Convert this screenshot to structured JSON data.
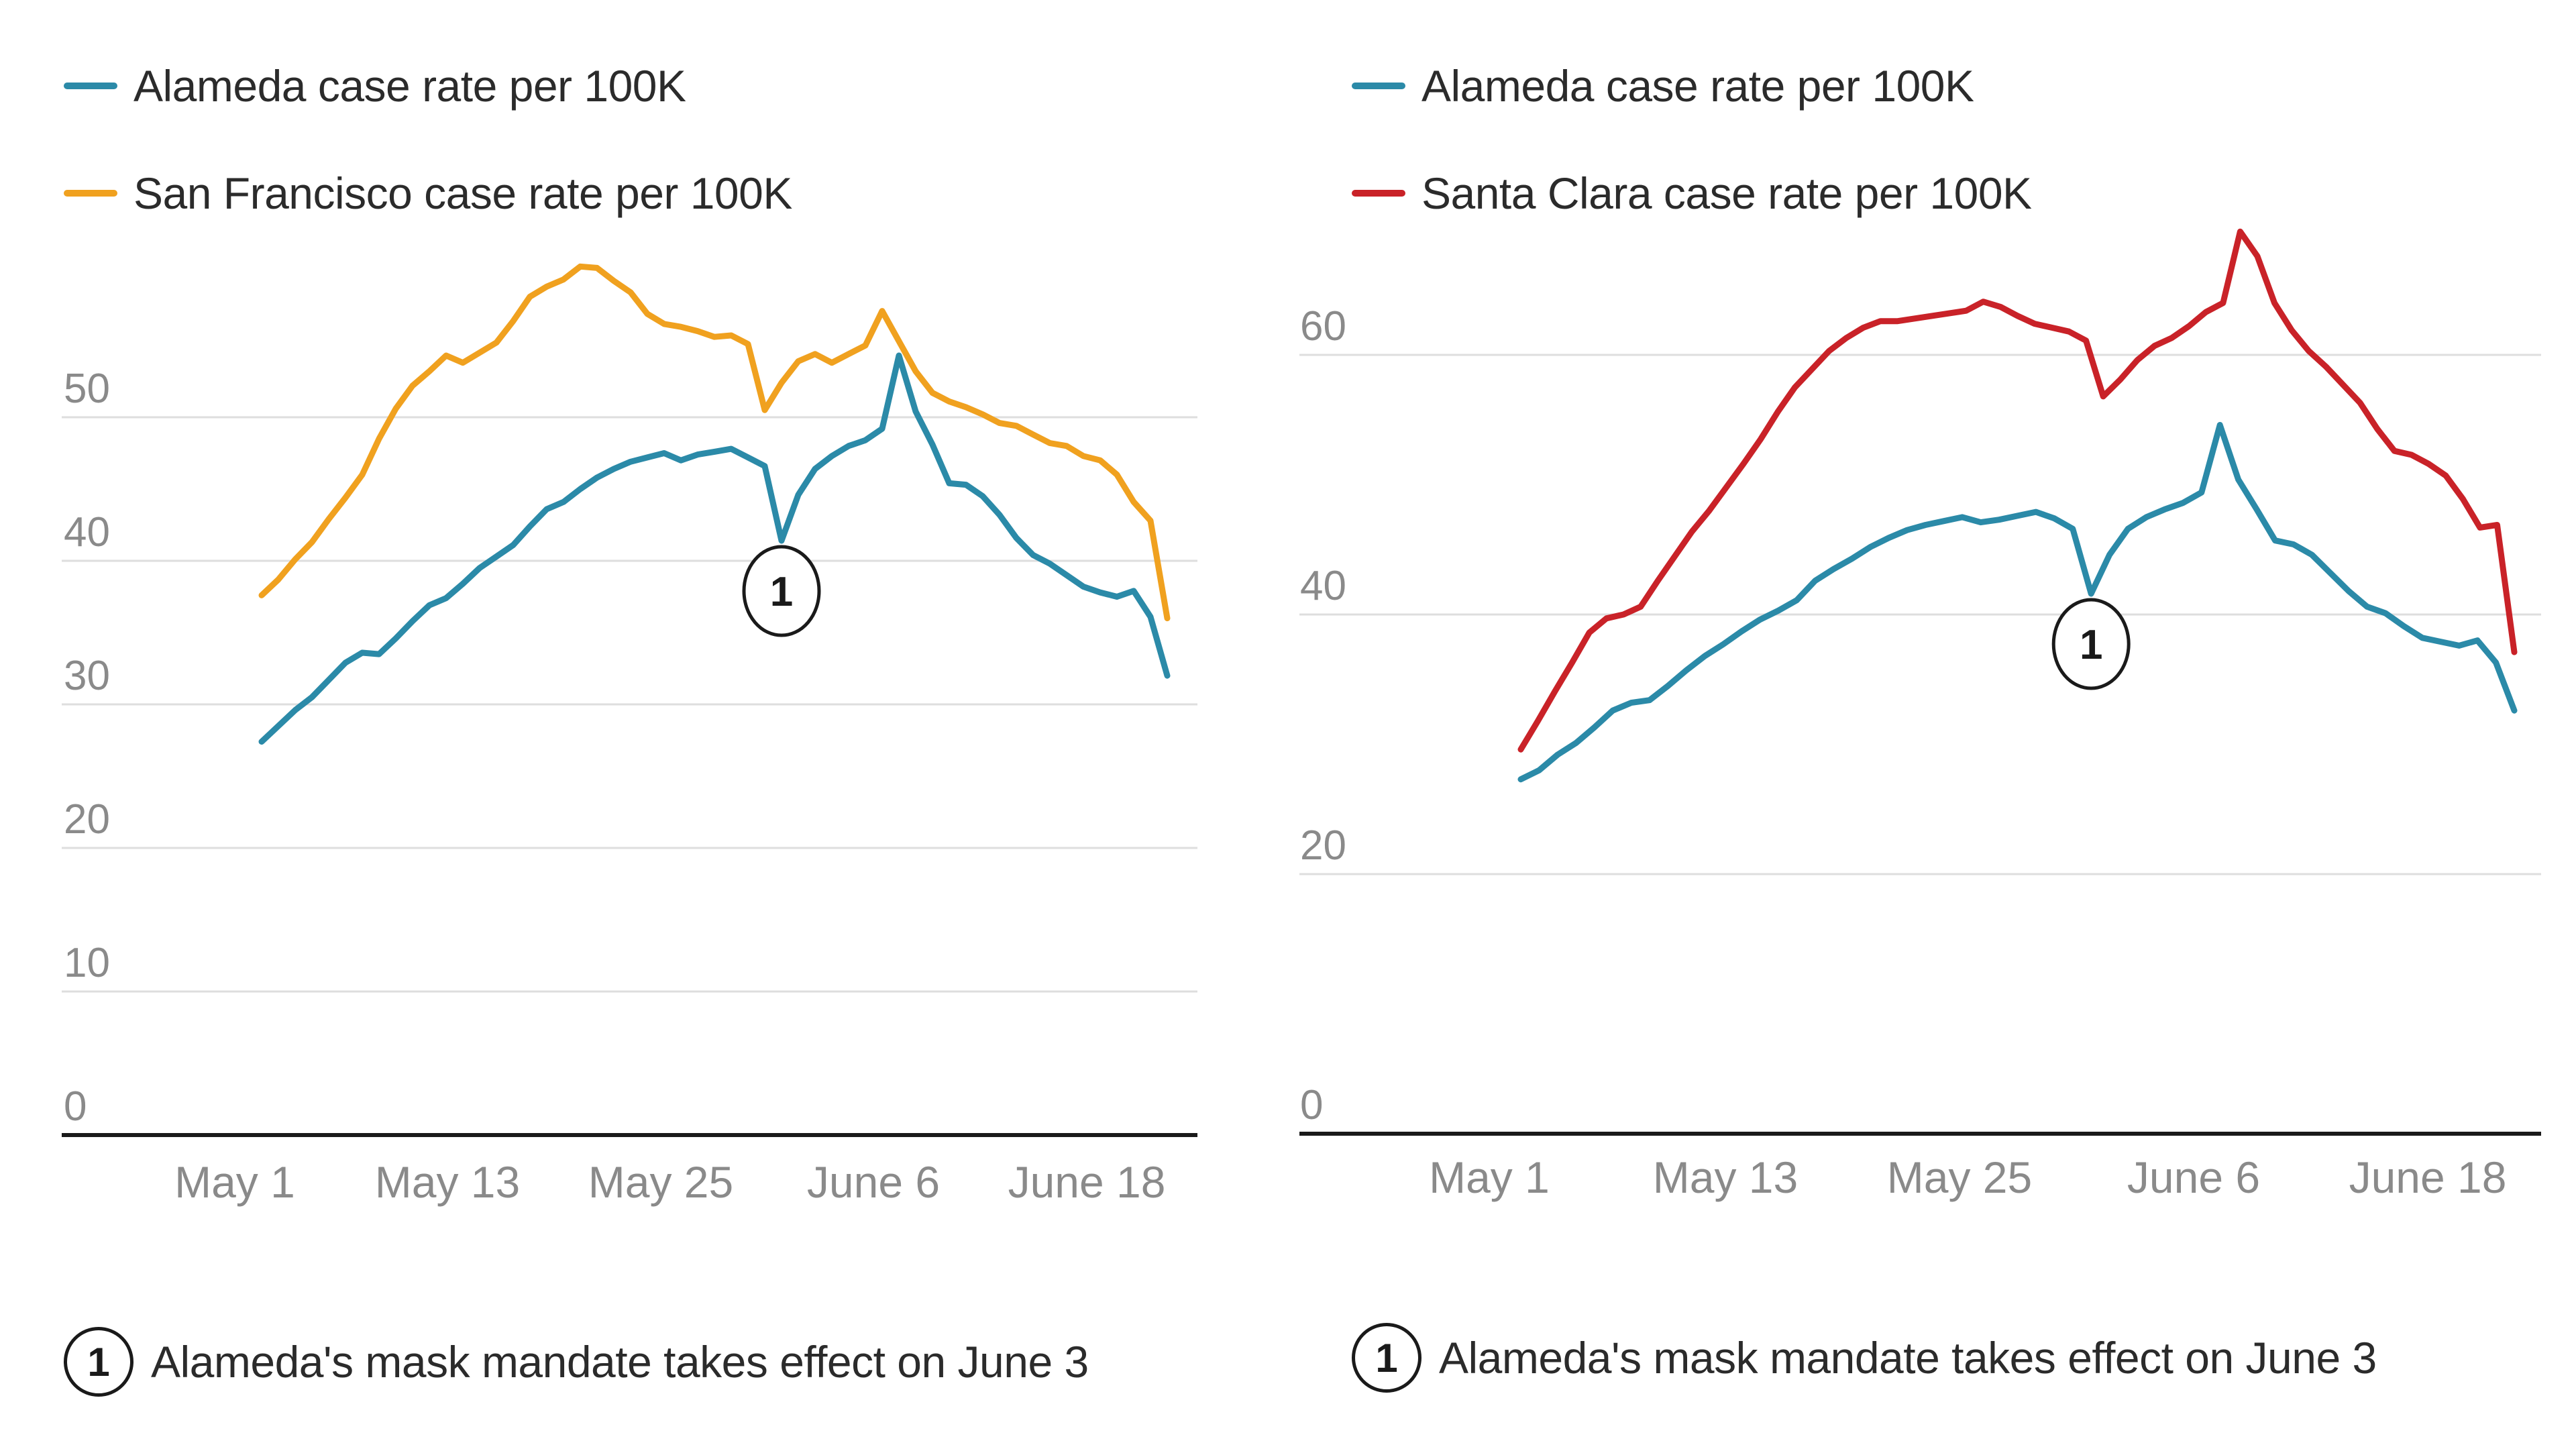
{
  "chart_data": [
    {
      "type": "line",
      "title": "",
      "xlabel": "",
      "ylabel": "",
      "x_tick_labels": [
        "May 1",
        "May 13",
        "May 25",
        "June 6",
        "June 18"
      ],
      "y_ticks": [
        0,
        10,
        20,
        30,
        40,
        50
      ],
      "ylim": [
        0,
        60
      ],
      "grid": true,
      "legend_position": "top-left",
      "series": [
        {
          "name": "Alameda case rate per 100K",
          "color": "#2b8aa8",
          "values": [
            27.4,
            28.5,
            29.6,
            30.5,
            31.7,
            32.9,
            33.6,
            33.5,
            34.6,
            35.8,
            36.9,
            37.4,
            38.4,
            39.5,
            40.3,
            41.1,
            42.4,
            43.6,
            44.1,
            45.0,
            45.8,
            46.4,
            46.9,
            47.2,
            47.5,
            47.0,
            47.4,
            47.6,
            47.8,
            47.2,
            46.6,
            41.4,
            44.6,
            46.4,
            47.3,
            48.0,
            48.4,
            49.2,
            54.3,
            50.4,
            48.1,
            45.4,
            45.3,
            44.5,
            43.2,
            41.6,
            40.4,
            39.8,
            39.0,
            38.2,
            37.8,
            37.5,
            37.9,
            36.1,
            32.0
          ]
        },
        {
          "name": "San Francisco case rate per 100K",
          "color": "#f0a11f",
          "values": [
            37.6,
            38.7,
            40.1,
            41.3,
            42.9,
            44.4,
            46.0,
            48.5,
            50.6,
            52.2,
            53.2,
            54.3,
            53.8,
            54.5,
            55.2,
            56.7,
            58.4,
            59.1,
            59.6,
            60.5,
            60.4,
            59.5,
            58.7,
            57.2,
            56.5,
            56.3,
            56.0,
            55.6,
            55.7,
            55.1,
            50.5,
            52.4,
            53.9,
            54.4,
            53.8,
            54.4,
            55.0,
            57.4,
            55.3,
            53.2,
            51.7,
            51.1,
            50.7,
            50.2,
            49.6,
            49.4,
            48.8,
            48.2,
            48.0,
            47.3,
            47.0,
            46.0,
            44.1,
            42.8,
            36.0
          ]
        }
      ],
      "annotation": {
        "marker": "1",
        "series": "Alameda case rate per 100K",
        "date": "June 3"
      }
    },
    {
      "type": "line",
      "title": "",
      "xlabel": "",
      "ylabel": "",
      "x_tick_labels": [
        "May 1",
        "May 13",
        "May 25",
        "June 6",
        "June 18"
      ],
      "y_ticks": [
        0,
        20,
        40,
        60
      ],
      "ylim": [
        0,
        60
      ],
      "grid": true,
      "legend_position": "top-left",
      "series": [
        {
          "name": "Alameda case rate per 100K",
          "color": "#2b8aa8",
          "values": [
            27.3,
            28.0,
            29.2,
            30.1,
            31.3,
            32.6,
            33.2,
            33.4,
            34.5,
            35.7,
            36.8,
            37.7,
            38.7,
            39.6,
            40.3,
            41.1,
            42.6,
            43.5,
            44.3,
            45.2,
            45.9,
            46.5,
            46.9,
            47.2,
            47.5,
            47.1,
            47.3,
            47.6,
            47.9,
            47.4,
            46.6,
            41.6,
            44.6,
            46.6,
            47.5,
            48.1,
            48.6,
            49.4,
            54.6,
            50.4,
            48.1,
            45.7,
            45.4,
            44.6,
            43.2,
            41.8,
            40.6,
            40.1,
            39.1,
            38.2,
            37.9,
            37.6,
            38.0,
            36.3,
            32.6
          ]
        },
        {
          "name": "Santa Clara case rate per 100K",
          "color": "#c92228",
          "values": [
            29.6,
            31.8,
            34.1,
            36.3,
            38.6,
            39.7,
            40.0,
            40.6,
            42.6,
            44.5,
            46.4,
            48.0,
            49.8,
            51.6,
            53.5,
            55.6,
            57.5,
            58.9,
            60.3,
            61.3,
            62.1,
            62.6,
            62.6,
            62.8,
            63.0,
            63.2,
            63.4,
            64.1,
            63.7,
            63.0,
            62.4,
            62.1,
            61.8,
            61.1,
            56.8,
            58.1,
            59.6,
            60.7,
            61.3,
            62.2,
            63.3,
            64.0,
            69.5,
            67.6,
            64.0,
            61.9,
            60.3,
            59.1,
            57.7,
            56.3,
            54.3,
            52.6,
            52.3,
            51.6,
            50.7,
            48.9,
            46.7,
            46.9,
            37.1
          ]
        }
      ],
      "annotation": {
        "marker": "1",
        "series": "Alameda case rate per 100K",
        "date": "June 3"
      }
    }
  ],
  "annotation_note": {
    "marker": "1",
    "text": "Alameda's mask mandate takes effect on June 3"
  },
  "colors": {
    "alameda": "#2b8aa8",
    "san_francisco": "#f0a11f",
    "santa_clara": "#c92228",
    "gridline": "#dedede",
    "baseline": "#1a1a1a",
    "tick_text": "#8a8a8a"
  }
}
